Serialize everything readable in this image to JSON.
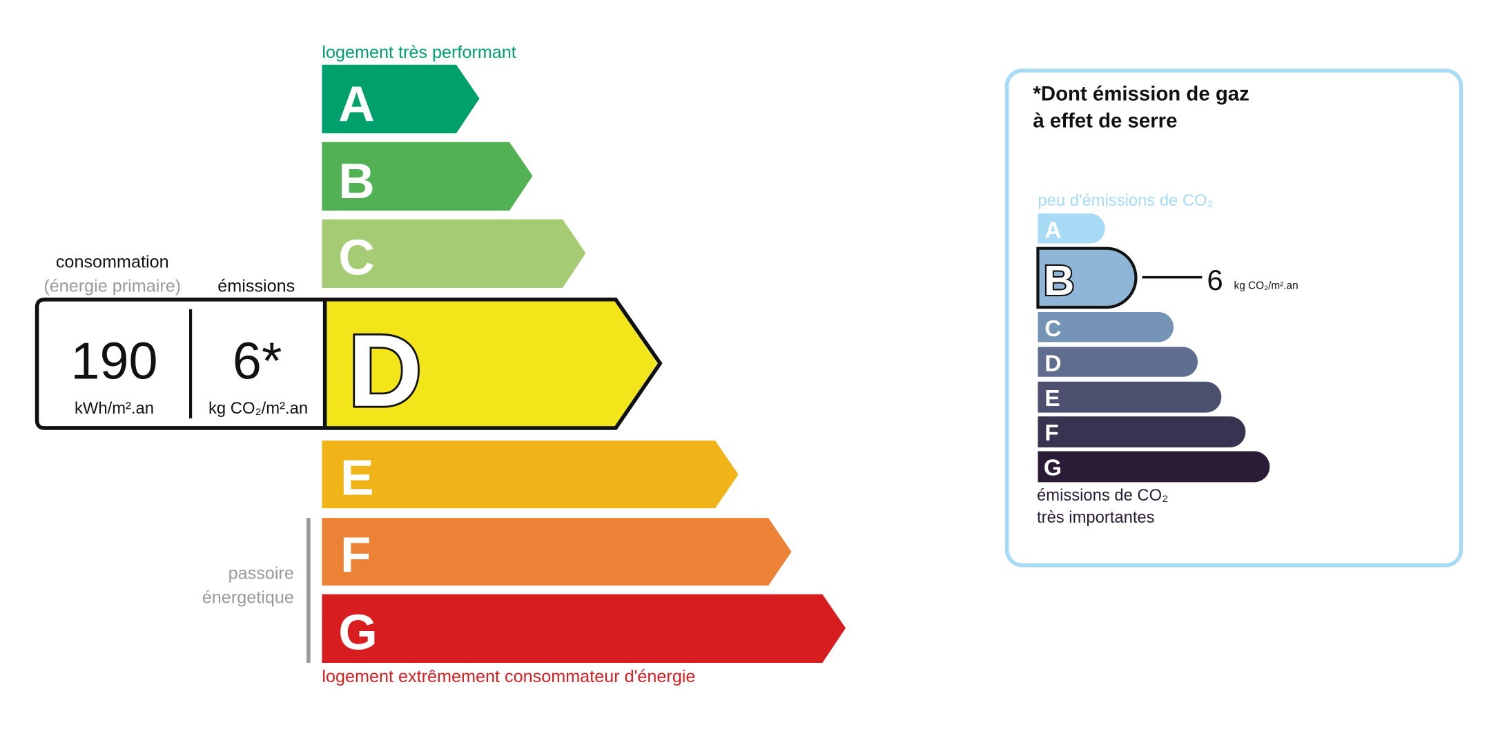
{
  "energy": {
    "top_label": "logement très performant",
    "bottom_label": "logement extrêmement consommateur d'énergie",
    "passoire_line1": "passoire",
    "passoire_line2": "énergetique",
    "current_class": "D",
    "classes": [
      {
        "letter": "A",
        "color": "#00a06d"
      },
      {
        "letter": "B",
        "color": "#52b153"
      },
      {
        "letter": "C",
        "color": "#a5cc74"
      },
      {
        "letter": "D",
        "color": "#f2e61b"
      },
      {
        "letter": "E",
        "color": "#f0b418"
      },
      {
        "letter": "F",
        "color": "#eb8235"
      },
      {
        "letter": "G",
        "color": "#d71d1f"
      }
    ],
    "consumption_label": "consommation",
    "consumption_sublabel": "(énergie primaire)",
    "emissions_label": "émissions",
    "consumption_value": "190",
    "consumption_unit": "kWh/m².an",
    "emissions_value": "6*",
    "emissions_unit": "kg CO₂/m².an"
  },
  "ges": {
    "title_line1": "*Dont émission de gaz",
    "title_line2": "à effet de serre",
    "top_label": "peu d'émissions de CO₂",
    "bottom_line1": "émissions de CO₂",
    "bottom_line2": "très importantes",
    "current_class": "B",
    "value": "6",
    "unit": "kg CO₂/m².an",
    "border_color": "#a7dbf5",
    "classes": [
      {
        "letter": "A",
        "color": "#a7dbf5"
      },
      {
        "letter": "B",
        "color": "#8fb6d6"
      },
      {
        "letter": "C",
        "color": "#7593b4"
      },
      {
        "letter": "D",
        "color": "#5f6d8f"
      },
      {
        "letter": "E",
        "color": "#4d4f6e"
      },
      {
        "letter": "F",
        "color": "#373452"
      },
      {
        "letter": "G",
        "color": "#2a1c36"
      }
    ]
  }
}
